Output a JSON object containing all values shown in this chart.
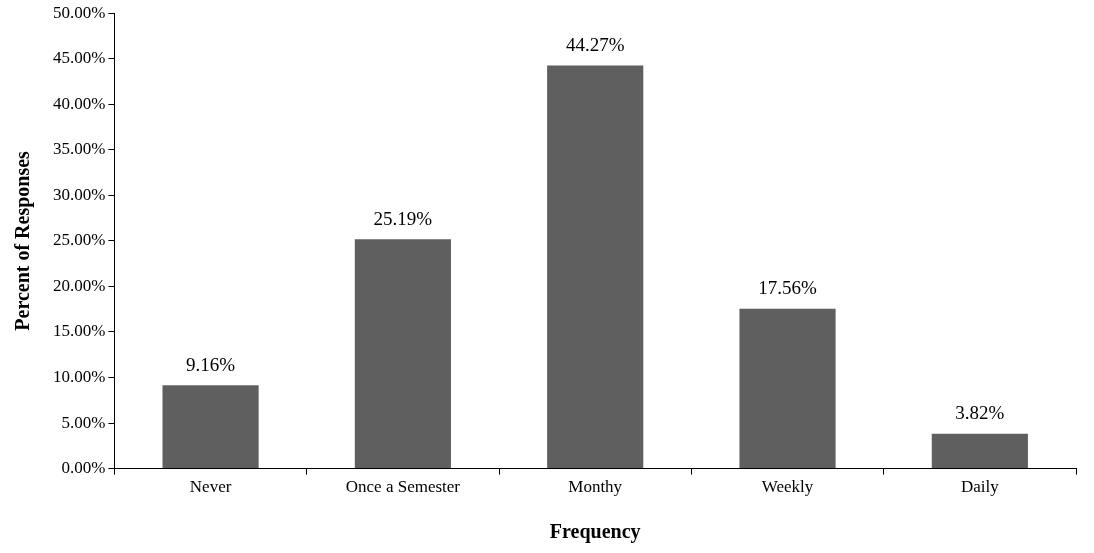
{
  "chart_data": {
    "type": "bar",
    "xlabel": "Frequency",
    "ylabel": "Percent of Responses",
    "categories": [
      "Never",
      "Once a Semester",
      "Monthy",
      "Weekly",
      "Daily"
    ],
    "values": [
      9.16,
      25.19,
      44.27,
      17.56,
      3.82
    ],
    "value_labels": [
      "9.16%",
      "25.19%",
      "44.27%",
      "17.56%",
      "3.82%"
    ],
    "color": "#5f5f5f",
    "ylim": [
      0,
      50
    ],
    "yticks": [
      {
        "value": 0,
        "label": "0.00%"
      },
      {
        "value": 5,
        "label": "5.00%"
      },
      {
        "value": 10,
        "label": "10.00%"
      },
      {
        "value": 15,
        "label": "15.00%"
      },
      {
        "value": 20,
        "label": "20.00%"
      },
      {
        "value": 25,
        "label": "25.00%"
      },
      {
        "value": 30,
        "label": "30.00%"
      },
      {
        "value": 35,
        "label": "35.00%"
      },
      {
        "value": 40,
        "label": "40.00%"
      },
      {
        "value": 45,
        "label": "45.00%"
      },
      {
        "value": 50,
        "label": "50.00%"
      }
    ]
  }
}
